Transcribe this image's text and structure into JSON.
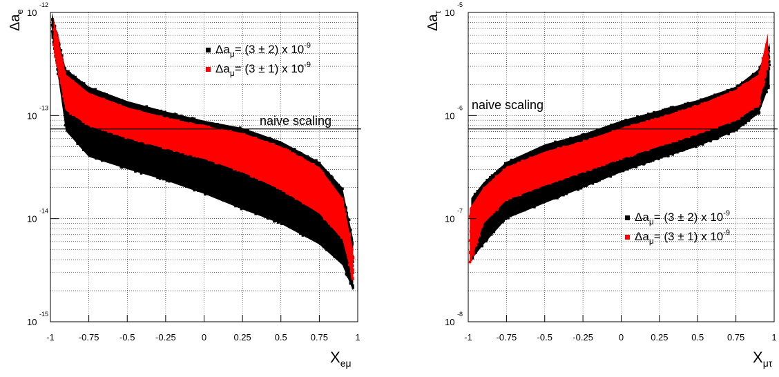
{
  "chart_data": [
    {
      "type": "scatter",
      "log_y": true,
      "grid": true,
      "xlim": [
        -1,
        1
      ],
      "ylim_exp": [
        -15,
        -12
      ],
      "x_ticks": [
        "-1",
        "-0.75",
        "-0.5",
        "-0.25",
        "0",
        "0.25",
        "0.5",
        "0.75",
        "1"
      ],
      "x_tick_values": [
        -1,
        -0.75,
        -0.5,
        -0.25,
        0,
        0.25,
        0.5,
        0.75,
        1
      ],
      "y_ticks": [
        {
          "base": "10",
          "exp": "-15",
          "value_exp": -15
        },
        {
          "base": "10",
          "exp": "-14",
          "value_exp": -14
        },
        {
          "base": "10",
          "exp": "-13",
          "value_exp": -13
        },
        {
          "base": "10",
          "exp": "-12",
          "value_exp": -12
        }
      ],
      "ylabel": {
        "main": "Δa",
        "sub": "e"
      },
      "xlabel": {
        "main": "X",
        "sub": "eμ"
      },
      "reference_line": {
        "log10_y": -13.13,
        "label": "naive scaling"
      },
      "legend_position": "top-right",
      "series": [
        {
          "name": {
            "pre": "Δa",
            "sub": "μ",
            "post": "= (3 ± 2) x 10",
            "sup": "-9"
          },
          "color": "#000000",
          "band": {
            "x": [
              -0.99,
              -0.9,
              -0.75,
              -0.5,
              -0.25,
              0,
              0.25,
              0.5,
              0.75,
              0.9,
              0.97
            ],
            "upper_log10": [
              -12.0,
              -12.55,
              -12.72,
              -12.86,
              -12.96,
              -13.05,
              -13.12,
              -13.25,
              -13.45,
              -13.7,
              -14.2
            ],
            "lower_log10": [
              -12.2,
              -13.15,
              -13.4,
              -13.52,
              -13.63,
              -13.76,
              -13.91,
              -14.05,
              -14.25,
              -14.45,
              -14.7
            ]
          }
        },
        {
          "name": {
            "pre": "Δa",
            "sub": "μ",
            "post": "= (3 ± 1) x 10",
            "sup": "-9"
          },
          "color": "#ff0000",
          "band": {
            "x": [
              -0.98,
              -0.9,
              -0.75,
              -0.5,
              -0.25,
              0,
              0.25,
              0.5,
              0.75,
              0.9,
              0.97
            ],
            "upper_log10": [
              -12.05,
              -12.6,
              -12.78,
              -12.92,
              -13.02,
              -13.1,
              -13.17,
              -13.3,
              -13.5,
              -13.8,
              -14.3
            ],
            "lower_log10": [
              -12.35,
              -12.95,
              -13.1,
              -13.22,
              -13.32,
              -13.42,
              -13.55,
              -13.72,
              -13.95,
              -14.2,
              -14.6
            ]
          }
        }
      ]
    },
    {
      "type": "scatter",
      "log_y": true,
      "grid": true,
      "xlim": [
        -1,
        1
      ],
      "ylim_exp": [
        -8,
        -5
      ],
      "x_ticks": [
        "-1",
        "-0.75",
        "-0.5",
        "-0.25",
        "0",
        "0.25",
        "0.5",
        "0.75",
        "1"
      ],
      "x_tick_values": [
        -1,
        -0.75,
        -0.5,
        -0.25,
        0,
        0.25,
        0.5,
        0.75,
        1
      ],
      "y_ticks": [
        {
          "base": "10",
          "exp": "-8",
          "value_exp": -8
        },
        {
          "base": "10",
          "exp": "-7",
          "value_exp": -7
        },
        {
          "base": "10",
          "exp": "-6",
          "value_exp": -6
        },
        {
          "base": "10",
          "exp": "-5",
          "value_exp": -5
        }
      ],
      "ylabel": {
        "main": "Δa",
        "sub": "τ"
      },
      "xlabel": {
        "main": "X",
        "sub": "μτ"
      },
      "reference_line": {
        "log10_y": -6.13,
        "label": "naive scaling"
      },
      "legend_position": "bottom-right",
      "series": [
        {
          "name": {
            "pre": "Δa",
            "sub": "μ",
            "post": "= (3 ± 2) x 10",
            "sup": "-9"
          },
          "color": "#000000",
          "band": {
            "x": [
              -0.98,
              -0.9,
              -0.75,
              -0.5,
              -0.25,
              0,
              0.25,
              0.5,
              0.75,
              0.9,
              0.97
            ],
            "upper_log10": [
              -6.8,
              -6.65,
              -6.45,
              -6.28,
              -6.18,
              -6.05,
              -5.95,
              -5.85,
              -5.72,
              -5.55,
              -5.3
            ],
            "lower_log10": [
              -7.4,
              -7.25,
              -7.0,
              -6.85,
              -6.7,
              -6.55,
              -6.42,
              -6.3,
              -6.15,
              -5.98,
              -5.7
            ]
          }
        },
        {
          "name": {
            "pre": "Δa",
            "sub": "μ",
            "post": "= (3 ± 1) x 10",
            "sup": "-9"
          },
          "color": "#ff0000",
          "band": {
            "x": [
              -0.99,
              -0.9,
              -0.75,
              -0.5,
              -0.25,
              0,
              0.25,
              0.5,
              0.75,
              0.9,
              0.96
            ],
            "upper_log10": [
              -6.9,
              -6.7,
              -6.5,
              -6.35,
              -6.25,
              -6.12,
              -6.02,
              -5.9,
              -5.75,
              -5.6,
              -5.2
            ],
            "lower_log10": [
              -7.45,
              -7.05,
              -6.82,
              -6.68,
              -6.55,
              -6.42,
              -6.3,
              -6.18,
              -6.05,
              -5.9,
              -5.5
            ]
          }
        }
      ]
    }
  ]
}
